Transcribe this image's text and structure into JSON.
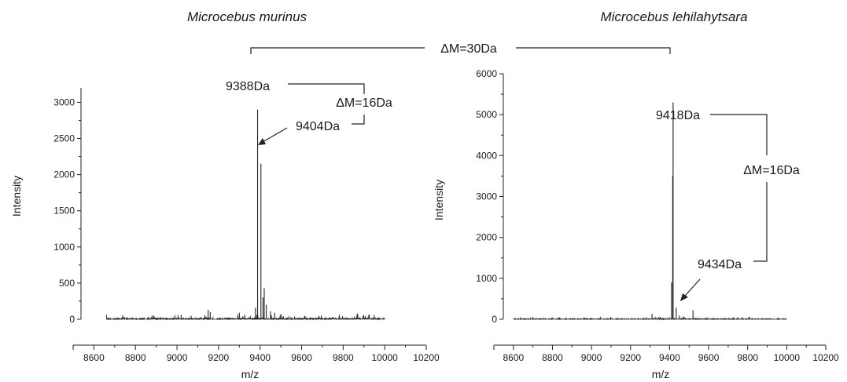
{
  "chart_data": [
    {
      "type": "line",
      "title": "Microcebus murinus",
      "xlabel": "m/z",
      "ylabel": "Intensity",
      "xlim": [
        8500,
        10200
      ],
      "ylim": [
        0,
        3200
      ],
      "x_ticks": [
        "8600",
        "8800",
        "9000",
        "9200",
        "9400",
        "9600",
        "9800",
        "10000",
        "10200"
      ],
      "y_ticks": [
        "0",
        "500",
        "1000",
        "1500",
        "2000",
        "2500",
        "3000"
      ],
      "data_range": [
        8660,
        10000
      ],
      "peaks": [
        {
          "x": 9388,
          "y": 2900
        },
        {
          "x": 9404,
          "y": 2150
        },
        {
          "x": 9420,
          "y": 430
        },
        {
          "x": 9414,
          "y": 300
        },
        {
          "x": 9430,
          "y": 200
        },
        {
          "x": 9378,
          "y": 160
        },
        {
          "x": 9150,
          "y": 130
        },
        {
          "x": 9160,
          "y": 100
        },
        {
          "x": 9300,
          "y": 90
        },
        {
          "x": 9870,
          "y": 80
        },
        {
          "x": 9450,
          "y": 110
        },
        {
          "x": 9470,
          "y": 90
        },
        {
          "x": 9020,
          "y": 60
        },
        {
          "x": 8880,
          "y": 50
        }
      ],
      "annotations": [
        {
          "text": "9388Da",
          "x": 9388,
          "y": 2900
        },
        {
          "text": "9404Da",
          "x": 9404,
          "y": 2150
        },
        {
          "text": "ΔM=16Da"
        }
      ]
    },
    {
      "type": "line",
      "title": "Microcebus lehilahytsara",
      "xlabel": "m/z",
      "ylabel": "Intensity",
      "xlim": [
        8500,
        10200
      ],
      "ylim": [
        0,
        6000
      ],
      "x_ticks": [
        "8600",
        "8800",
        "9000",
        "9200",
        "9400",
        "9600",
        "9800",
        "10000",
        "10200"
      ],
      "y_ticks": [
        "0",
        "1000",
        "2000",
        "3000",
        "4000",
        "5000",
        "6000"
      ],
      "data_range": [
        8600,
        10000
      ],
      "peaks": [
        {
          "x": 9418,
          "y": 5300
        },
        {
          "x": 9416,
          "y": 3500
        },
        {
          "x": 9410,
          "y": 900
        },
        {
          "x": 9434,
          "y": 280
        },
        {
          "x": 9520,
          "y": 220
        },
        {
          "x": 9310,
          "y": 130
        },
        {
          "x": 9450,
          "y": 90
        },
        {
          "x": 9470,
          "y": 70
        }
      ],
      "annotations": [
        {
          "text": "9418Da",
          "x": 9418,
          "y": 5300
        },
        {
          "text": "9434Da",
          "x": 9434,
          "y": 280
        },
        {
          "text": "ΔM=16Da"
        }
      ]
    }
  ],
  "cross_annotation": {
    "text": "ΔM=30Da"
  }
}
